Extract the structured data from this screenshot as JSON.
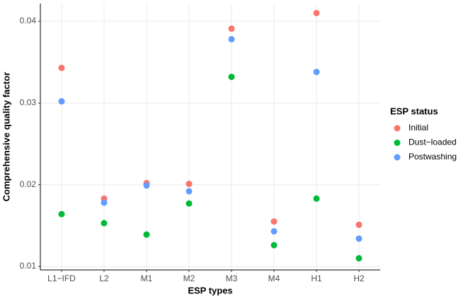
{
  "chart_data": {
    "type": "scatter",
    "x_label": "ESP types",
    "y_label": "Comprehensive quality factor",
    "categories": [
      "L1−IFD",
      "L2",
      "M1",
      "M2",
      "M3",
      "M4",
      "H1",
      "H2"
    ],
    "series": [
      {
        "name": "Initial",
        "color": "#f8766d",
        "values": [
          0.0343,
          0.0183,
          0.0202,
          0.0201,
          0.0391,
          0.0155,
          0.041,
          0.0151
        ]
      },
      {
        "name": "Dust−loaded",
        "color": "#00ba38",
        "values": [
          0.0164,
          0.0153,
          0.0139,
          0.0177,
          0.0332,
          0.0126,
          0.0183,
          0.011
        ]
      },
      {
        "name": "Postwashing",
        "color": "#619cff",
        "values": [
          0.0302,
          0.0178,
          0.0199,
          0.0192,
          0.0378,
          0.0143,
          0.0338,
          0.0134
        ]
      }
    ],
    "legend_title": "ESP status",
    "legend": "right",
    "ylim": [
      0.00957,
      0.04217
    ],
    "yticks": [
      0.01,
      0.02,
      0.03,
      0.04
    ],
    "grid": true
  }
}
